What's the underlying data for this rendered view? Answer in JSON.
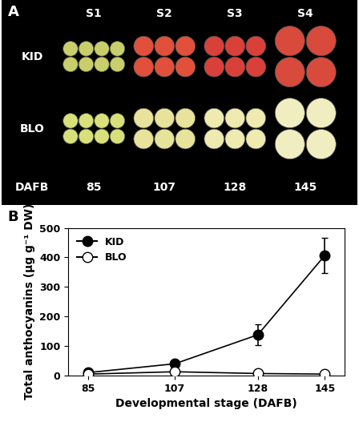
{
  "panel_a": {
    "label": "A",
    "columns": [
      "S1",
      "S2",
      "S3",
      "S4"
    ],
    "rows": [
      "KID",
      "BLO"
    ],
    "footer_label": "DAFB",
    "footer": [
      "85",
      "107",
      "128",
      "145"
    ]
  },
  "chart_data": {
    "type": "line",
    "title": "B",
    "x_label": "Developmental stage (DAFB)",
    "y_label": "Total anthocyanins (μg g⁻¹ DW)",
    "x": [
      85,
      107,
      128,
      145
    ],
    "series": [
      {
        "name": "KID",
        "color": "#000000",
        "marker": "o",
        "line_style": "solid",
        "values": [
          10,
          40,
          138,
          407
        ],
        "errors": [
          4,
          8,
          35,
          60
        ]
      },
      {
        "name": "BLO",
        "color": "#ffffff",
        "marker": "o",
        "line_style": "solid",
        "values": [
          5,
          13,
          7,
          5
        ],
        "errors": [
          2,
          3,
          2,
          2
        ]
      }
    ],
    "xlim": [
      80,
      150
    ],
    "xticks": [
      85,
      107,
      128,
      145
    ],
    "ylim": [
      0,
      500
    ],
    "yticks": [
      0,
      100,
      200,
      300,
      400,
      500
    ],
    "legend": "upper left",
    "grid": false
  }
}
